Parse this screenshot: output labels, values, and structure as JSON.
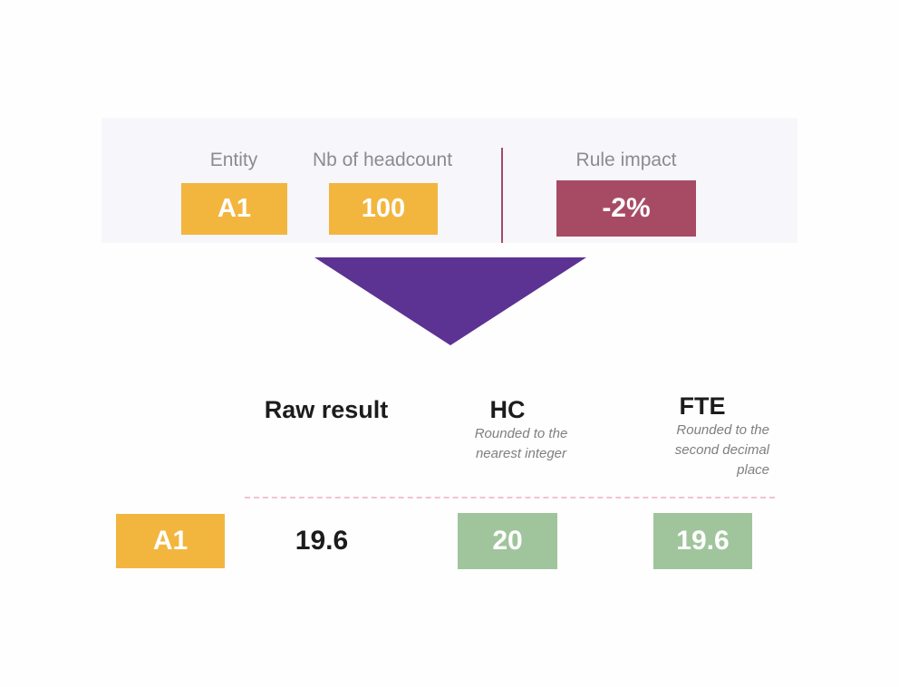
{
  "colors": {
    "orange": "#f2b63f",
    "maroon": "#a74b64",
    "green": "#a0c59c",
    "purple": "#5c3292",
    "panel_background": "#f7f6fa",
    "label_gray": "#8b8b92",
    "note_gray": "#7f7f7f",
    "dashed_pink": "#f2c3d1"
  },
  "input_panel": {
    "entity": {
      "label": "Entity",
      "value": "A1"
    },
    "headcount": {
      "label": "Nb of headcount",
      "value": "100"
    },
    "rule": {
      "label": "Rule impact",
      "value": "-2%"
    }
  },
  "arrow": {
    "icon": "down-triangle"
  },
  "results": {
    "entity_value": "A1",
    "raw": {
      "header": "Raw result",
      "value": "19.6"
    },
    "hc": {
      "header": "HC",
      "note": "Rounded to the nearest integer",
      "value": "20"
    },
    "fte": {
      "header": "FTE",
      "note": "Rounded to the second decimal place",
      "value": "19.6"
    }
  }
}
